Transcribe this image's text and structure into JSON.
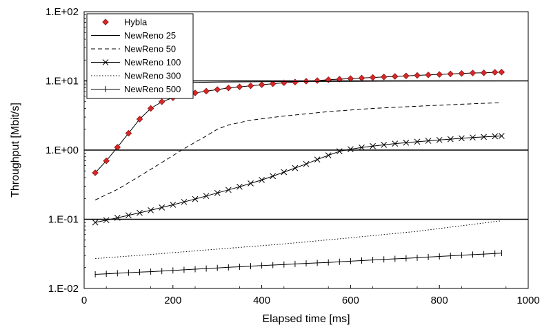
{
  "chart_data": {
    "type": "line",
    "title": "",
    "xlabel": "Elapsed time [ms]",
    "ylabel": "Throughput [Mbit/s]",
    "xlim": [
      0,
      1000
    ],
    "ylim": [
      0.01,
      100
    ],
    "yscale": "log",
    "xticks": [
      0,
      200,
      400,
      600,
      800,
      1000
    ],
    "xtick_labels": [
      "0",
      "200",
      "400",
      "600",
      "800",
      "1000"
    ],
    "yticks": [
      0.01,
      0.1,
      1,
      10,
      100
    ],
    "ytick_labels": [
      "1.E-02",
      "1.E-01",
      "1.E+00",
      "1.E+01",
      "1.E+02"
    ],
    "grid": "horizontal at decades",
    "legend_position": "top-left",
    "colors": {
      "hybla_marker": "#d62828",
      "line": "#000000"
    },
    "series": [
      {
        "name": "Hybla",
        "style": "diamond-markers-solid-line",
        "x": [
          25,
          50,
          75,
          100,
          125,
          150,
          175,
          200,
          225,
          250,
          275,
          300,
          325,
          350,
          375,
          400,
          425,
          450,
          475,
          500,
          525,
          550,
          575,
          600,
          625,
          650,
          675,
          700,
          725,
          750,
          775,
          800,
          825,
          850,
          875,
          900,
          925,
          940
        ],
        "y": [
          0.47,
          0.7,
          1.1,
          1.75,
          2.8,
          4.0,
          5.0,
          5.7,
          6.2,
          6.7,
          7.1,
          7.5,
          7.9,
          8.2,
          8.5,
          8.8,
          9.1,
          9.4,
          9.6,
          9.9,
          10.1,
          10.4,
          10.6,
          10.8,
          11.0,
          11.2,
          11.4,
          11.6,
          11.8,
          12.0,
          12.2,
          12.4,
          12.6,
          12.8,
          13.0,
          13.1,
          13.3,
          13.4
        ]
      },
      {
        "name": "NewReno 25",
        "style": "solid",
        "x": [
          25,
          100,
          200,
          240,
          300,
          400,
          500,
          600,
          700,
          800,
          900,
          1000
        ],
        "y": [
          9.0,
          9.1,
          9.3,
          9.5,
          9.6,
          9.7,
          9.8,
          9.85,
          9.9,
          9.95,
          9.98,
          10.0
        ]
      },
      {
        "name": "NewReno 50",
        "style": "dashed",
        "x": [
          25,
          75,
          125,
          175,
          225,
          275,
          300,
          325,
          375,
          450,
          550,
          650,
          750,
          850,
          940
        ],
        "y": [
          0.19,
          0.27,
          0.42,
          0.66,
          1.05,
          1.6,
          2.0,
          2.3,
          2.7,
          3.1,
          3.6,
          4.0,
          4.3,
          4.6,
          4.85
        ]
      },
      {
        "name": "NewReno 100",
        "style": "x-markers-solid-line",
        "x": [
          25,
          50,
          75,
          100,
          125,
          150,
          175,
          200,
          225,
          250,
          275,
          300,
          325,
          350,
          375,
          400,
          425,
          450,
          475,
          500,
          525,
          550,
          575,
          600,
          625,
          650,
          675,
          700,
          725,
          750,
          775,
          800,
          825,
          850,
          875,
          900,
          925,
          940
        ],
        "y": [
          0.09,
          0.097,
          0.105,
          0.114,
          0.124,
          0.135,
          0.148,
          0.162,
          0.178,
          0.196,
          0.217,
          0.24,
          0.266,
          0.295,
          0.33,
          0.37,
          0.42,
          0.48,
          0.55,
          0.63,
          0.73,
          0.84,
          0.96,
          1.03,
          1.09,
          1.14,
          1.19,
          1.24,
          1.28,
          1.32,
          1.36,
          1.4,
          1.44,
          1.48,
          1.52,
          1.55,
          1.58,
          1.6
        ]
      },
      {
        "name": "NewReno 300",
        "style": "dotted",
        "x": [
          25,
          150,
          300,
          450,
          600,
          750,
          940
        ],
        "y": [
          0.027,
          0.031,
          0.037,
          0.044,
          0.054,
          0.067,
          0.095
        ]
      },
      {
        "name": "NewReno 500",
        "style": "plus-markers-solid-line",
        "x": [
          25,
          50,
          75,
          100,
          125,
          150,
          175,
          200,
          225,
          250,
          275,
          300,
          325,
          350,
          375,
          400,
          425,
          450,
          475,
          500,
          525,
          550,
          575,
          600,
          625,
          650,
          675,
          700,
          725,
          750,
          775,
          800,
          825,
          850,
          875,
          900,
          925,
          940
        ],
        "y": [
          0.016,
          0.0163,
          0.0166,
          0.0169,
          0.0172,
          0.0175,
          0.0178,
          0.0182,
          0.0186,
          0.019,
          0.0194,
          0.0198,
          0.0202,
          0.0206,
          0.021,
          0.0214,
          0.0218,
          0.0222,
          0.0226,
          0.023,
          0.0234,
          0.0238,
          0.0243,
          0.0248,
          0.0253,
          0.0258,
          0.0263,
          0.0268,
          0.0273,
          0.0278,
          0.0284,
          0.029,
          0.0296,
          0.0302,
          0.0308,
          0.0314,
          0.032,
          0.0325
        ]
      }
    ]
  }
}
